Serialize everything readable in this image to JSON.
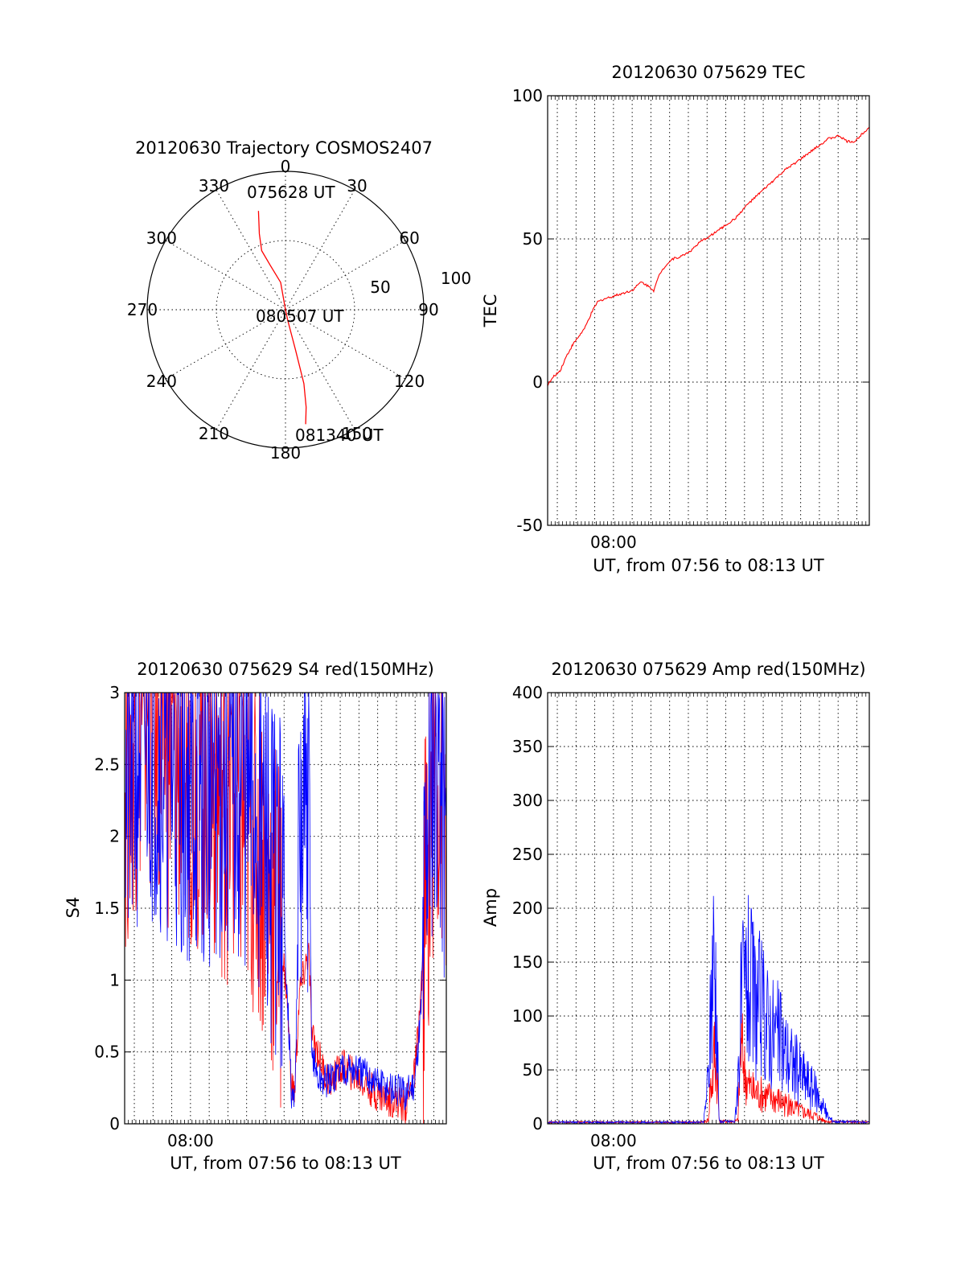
{
  "colors": {
    "red": "#ff0000",
    "blue": "#0000ff",
    "axis": "#000000"
  },
  "chart_data": [
    {
      "type": "polar",
      "title": "20120630 Trajectory COSMOS2407",
      "azimuth_labels": [
        "0",
        "30",
        "60",
        "90",
        "120",
        "150",
        "180",
        "210",
        "240",
        "270",
        "300",
        "330"
      ],
      "radial_labels": [
        "50",
        "100"
      ],
      "series": [
        {
          "color": "#ff0000",
          "points": [
            [
              -15.3,
              74
            ],
            [
              -19,
              58
            ],
            [
              -22,
              46
            ],
            [
              -19,
              34
            ],
            [
              -10,
              20
            ],
            [
              0,
              0
            ],
            [
              168,
              8
            ],
            [
              166,
              30
            ],
            [
              166,
              55
            ],
            [
              168,
              72
            ],
            [
              170,
              84
            ]
          ]
        }
      ],
      "annotations": [
        {
          "text": "075628 UT",
          "at": [
            -15.3,
            74
          ]
        },
        {
          "text": "080507 UT",
          "at": [
            0,
            0
          ]
        },
        {
          "text": "081340 UT",
          "at": [
            170,
            84
          ]
        }
      ]
    },
    {
      "type": "line",
      "title": "20120630 075629 TEC",
      "xlabel": "UT, from 07:56 to 08:13 UT",
      "ylabel": "TEC",
      "xlim": [
        0,
        1031
      ],
      "ylim": [
        -50,
        100
      ],
      "yticks": [
        "-50",
        "0",
        "50",
        "100"
      ],
      "xtick_label": "08:00",
      "xtick_at": 211,
      "grid": true,
      "series": [
        {
          "color": "#ff0000",
          "points": [
            [
              0,
              -1
            ],
            [
              20,
              2
            ],
            [
              40,
              4
            ],
            [
              60,
              9
            ],
            [
              80,
              13
            ],
            [
              100,
              16
            ],
            [
              120,
              19
            ],
            [
              140,
              24
            ],
            [
              160,
              28
            ],
            [
              180,
              29
            ],
            [
              210,
              30
            ],
            [
              240,
              31
            ],
            [
              270,
              32
            ],
            [
              300,
              35
            ],
            [
              330,
              33
            ],
            [
              340,
              32
            ],
            [
              360,
              38
            ],
            [
              380,
              41
            ],
            [
              400,
              43
            ],
            [
              430,
              44
            ],
            [
              460,
              46
            ],
            [
              490,
              49
            ],
            [
              520,
              51
            ],
            [
              560,
              54
            ],
            [
              600,
              57
            ],
            [
              640,
              62
            ],
            [
              680,
              66
            ],
            [
              720,
              70
            ],
            [
              760,
              74
            ],
            [
              800,
              77
            ],
            [
              850,
              81
            ],
            [
              900,
              85
            ],
            [
              935,
              86
            ],
            [
              960,
              84
            ],
            [
              985,
              84
            ],
            [
              1010,
              87
            ],
            [
              1031,
              89
            ]
          ]
        }
      ]
    },
    {
      "type": "line",
      "title": "20120630 075629 S4 red(150MHz)",
      "xlabel": "UT, from 07:56 to 08:13 UT",
      "ylabel": "S4",
      "xlim": [
        0,
        1031
      ],
      "ylim": [
        0,
        3
      ],
      "yticks": [
        "0",
        "0.5",
        "1",
        "1.5",
        "2",
        "2.5",
        "3"
      ],
      "xtick_label": "08:00",
      "xtick_at": 211,
      "grid": true,
      "series": [
        {
          "color": "#ff0000",
          "points": [
            [
              0,
              2.4
            ],
            [
              60,
              3
            ],
            [
              150,
              2.6
            ],
            [
              250,
              2.5
            ],
            [
              350,
              2.2
            ],
            [
              420,
              2.0
            ],
            [
              460,
              1.7
            ],
            [
              500,
              1.3
            ],
            [
              520,
              0.9
            ],
            [
              535,
              0.25
            ],
            [
              545,
              0.22
            ],
            [
              560,
              0.9
            ],
            [
              590,
              1.2
            ],
            [
              600,
              0.6
            ],
            [
              620,
              0.5
            ],
            [
              640,
              0.35
            ],
            [
              660,
              0.3
            ],
            [
              700,
              0.4
            ],
            [
              760,
              0.3
            ],
            [
              800,
              0.22
            ],
            [
              840,
              0.18
            ],
            [
              880,
              0.15
            ],
            [
              900,
              0.12
            ],
            [
              930,
              0.35
            ],
            [
              950,
              0.9
            ],
            [
              970,
              1.8
            ],
            [
              985,
              2.4
            ],
            [
              1000,
              2.6
            ],
            [
              1031,
              2.2
            ]
          ]
        },
        {
          "color": "#0000ff",
          "points": [
            [
              0,
              2.2
            ],
            [
              60,
              2.8
            ],
            [
              150,
              2.5
            ],
            [
              250,
              2.3
            ],
            [
              350,
              2.4
            ],
            [
              420,
              2.2
            ],
            [
              460,
              1.9
            ],
            [
              500,
              1.6
            ],
            [
              520,
              1.0
            ],
            [
              535,
              0.18
            ],
            [
              545,
              0.16
            ],
            [
              560,
              1.8
            ],
            [
              590,
              2.2
            ],
            [
              600,
              0.5
            ],
            [
              620,
              0.3
            ],
            [
              660,
              0.3
            ],
            [
              700,
              0.4
            ],
            [
              760,
              0.35
            ],
            [
              800,
              0.3
            ],
            [
              840,
              0.25
            ],
            [
              880,
              0.22
            ],
            [
              900,
              0.2
            ],
            [
              930,
              0.3
            ],
            [
              950,
              0.8
            ],
            [
              970,
              2.2
            ],
            [
              985,
              2.6
            ],
            [
              1000,
              2.8
            ],
            [
              1031,
              2.0
            ]
          ]
        }
      ]
    },
    {
      "type": "line",
      "title": "20120630 075629 Amp red(150MHz)",
      "xlabel": "UT, from 07:56 to 08:13 UT",
      "ylabel": "Amp",
      "xlim": [
        0,
        1031
      ],
      "ylim": [
        0,
        400
      ],
      "yticks": [
        "0",
        "50",
        "100",
        "150",
        "200",
        "250",
        "300",
        "350",
        "400"
      ],
      "xtick_label": "08:00",
      "xtick_at": 211,
      "grid": true,
      "series": [
        {
          "color": "#ff0000",
          "points": [
            [
              0,
              2
            ],
            [
              500,
              2
            ],
            [
              515,
              5
            ],
            [
              520,
              40
            ],
            [
              530,
              60
            ],
            [
              535,
              100
            ],
            [
              545,
              50
            ],
            [
              550,
              3
            ],
            [
              600,
              3
            ],
            [
              610,
              5
            ],
            [
              620,
              100
            ],
            [
              630,
              70
            ],
            [
              640,
              50
            ],
            [
              660,
              40
            ],
            [
              700,
              35
            ],
            [
              740,
              30
            ],
            [
              780,
              22
            ],
            [
              820,
              15
            ],
            [
              860,
              10
            ],
            [
              880,
              5
            ],
            [
              900,
              3
            ],
            [
              1031,
              2
            ]
          ]
        },
        {
          "color": "#0000ff",
          "points": [
            [
              0,
              2
            ],
            [
              500,
              2
            ],
            [
              515,
              60
            ],
            [
              525,
              160
            ],
            [
              530,
              220
            ],
            [
              540,
              180
            ],
            [
              550,
              3
            ],
            [
              600,
              3
            ],
            [
              610,
              60
            ],
            [
              620,
              150
            ],
            [
              640,
              180
            ],
            [
              660,
              160
            ],
            [
              680,
              150
            ],
            [
              700,
              130
            ],
            [
              740,
              110
            ],
            [
              780,
              80
            ],
            [
              820,
              60
            ],
            [
              860,
              40
            ],
            [
              880,
              25
            ],
            [
              900,
              8
            ],
            [
              920,
              3
            ],
            [
              1031,
              2
            ]
          ]
        }
      ]
    }
  ]
}
